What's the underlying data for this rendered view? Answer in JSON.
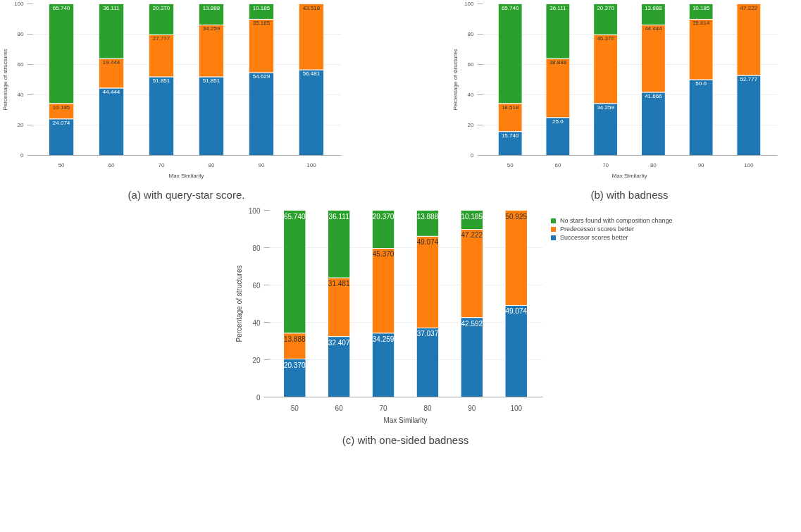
{
  "chart_data": [
    {
      "type": "bar",
      "stacked": true,
      "xlabel": "Max Similarity",
      "ylabel": "Percentage of structures",
      "categories": [
        "50",
        "60",
        "70",
        "80",
        "90",
        "100"
      ],
      "ylim": [
        0,
        100
      ],
      "yticks": [
        0,
        20,
        40,
        60,
        80,
        100
      ],
      "grid": "y",
      "legend": false,
      "annotations": [
        "(a) with query-star score."
      ],
      "series": [
        {
          "color": "#1f77b4",
          "values": [
            24.074,
            44.444,
            51.851,
            51.851,
            54.629,
            56.481
          ],
          "value_labels": [
            "24.074",
            "44.444",
            "51.851",
            "51.851",
            "54.629",
            "56.481"
          ]
        },
        {
          "color": "#ff7f0e",
          "values": [
            10.185,
            19.444,
            27.777,
            34.259,
            35.185,
            43.518
          ],
          "value_labels": [
            "10.185",
            "19.444",
            "27.777",
            "34.259",
            "35.185",
            "43.518"
          ]
        },
        {
          "color": "#2ca02c",
          "values": [
            65.74,
            36.111,
            20.37,
            13.888,
            10.185,
            null
          ],
          "value_labels": [
            "65.740",
            "36.111",
            "20.370",
            "13.888",
            "10.185",
            null
          ]
        }
      ]
    },
    {
      "type": "bar",
      "stacked": true,
      "xlabel": "Max Similarity",
      "ylabel": "Percentage of structures",
      "categories": [
        "50",
        "60",
        "70",
        "80",
        "90",
        "100"
      ],
      "ylim": [
        0,
        100
      ],
      "yticks": [
        0,
        20,
        40,
        60,
        80,
        100
      ],
      "grid": "y",
      "legend": false,
      "annotations": [
        "(b) with badness"
      ],
      "series": [
        {
          "color": "#1f77b4",
          "values": [
            15.74,
            25.0,
            34.259,
            41.666,
            50.0,
            52.777
          ],
          "value_labels": [
            "15.740",
            "25.0",
            "34.259",
            "41.666",
            "50.0",
            "52.777"
          ]
        },
        {
          "color": "#ff7f0e",
          "values": [
            18.518,
            38.888,
            45.37,
            44.444,
            39.814,
            47.222
          ],
          "value_labels": [
            "18.518",
            "38.888",
            "45.370",
            "44.444",
            "39.814",
            "47.222"
          ]
        },
        {
          "color": "#2ca02c",
          "values": [
            65.74,
            36.111,
            20.37,
            13.888,
            10.185,
            null
          ],
          "value_labels": [
            "65.740",
            "36.111",
            "20.370",
            "13.888",
            "10.185",
            null
          ]
        }
      ]
    },
    {
      "type": "bar",
      "stacked": true,
      "xlabel": "Max Similarity",
      "ylabel": "Percentage of structures",
      "categories": [
        "50",
        "60",
        "70",
        "80",
        "90",
        "100"
      ],
      "ylim": [
        0,
        100
      ],
      "yticks": [
        0,
        20,
        40,
        60,
        80,
        100
      ],
      "grid": "y",
      "legend": "top right",
      "annotations": [
        "(c) with one-sided badness"
      ],
      "series": [
        {
          "name": "Successor scores better",
          "color": "#1f77b4",
          "values": [
            20.37,
            32.407,
            34.259,
            37.037,
            42.592,
            49.074
          ],
          "value_labels": [
            "20.370",
            "32.407",
            "34.259",
            "37.037",
            "42.592",
            "49.074"
          ]
        },
        {
          "name": "Predecessor scores better",
          "color": "#ff7f0e",
          "values": [
            13.888,
            31.481,
            45.37,
            49.074,
            47.222,
            50.925
          ],
          "value_labels": [
            "13.888",
            "31.481",
            "45.370",
            "49.074",
            "47.222",
            "50.925"
          ]
        },
        {
          "name": "No stars found with composition change",
          "color": "#2ca02c",
          "values": [
            65.74,
            36.111,
            20.37,
            13.888,
            10.185,
            null
          ],
          "value_labels": [
            "65.740",
            "36.111",
            "20.370",
            "13.888",
            "10.185",
            null
          ]
        }
      ]
    }
  ]
}
